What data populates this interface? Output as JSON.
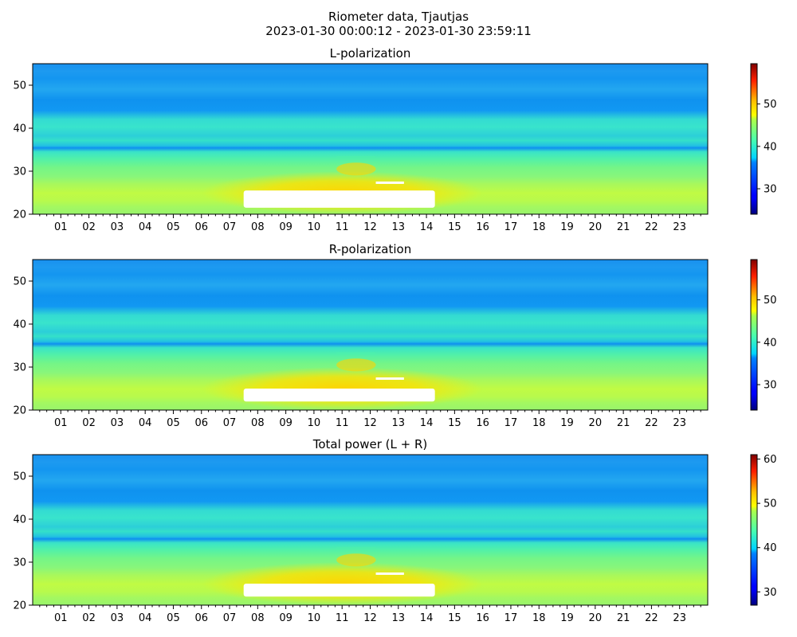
{
  "figure": {
    "title_line1": "Riometer data, Tjautjas",
    "title_line2": "2023-01-30 00:00:12 - 2023-01-30 23:59:11"
  },
  "chart_data": [
    {
      "type": "heatmap",
      "title": "L-polarization",
      "xlabel": "",
      "ylabel": "",
      "x_ticks": [
        "01",
        "02",
        "03",
        "04",
        "05",
        "06",
        "07",
        "08",
        "09",
        "10",
        "11",
        "12",
        "13",
        "14",
        "15",
        "16",
        "17",
        "18",
        "19",
        "20",
        "21",
        "22",
        "23"
      ],
      "xlim": [
        0,
        24
      ],
      "y_ticks": [
        20,
        30,
        40,
        50
      ],
      "ylim": [
        20,
        55
      ],
      "colorbar": {
        "ticks": [
          30,
          40,
          50
        ],
        "range": [
          24,
          59.5
        ],
        "colormap": "jet"
      },
      "saturated_region": {
        "x_range_hours": [
          7.5,
          14.3
        ],
        "y_range": [
          21.5,
          25.5
        ],
        "color": "#ffffff"
      }
    },
    {
      "type": "heatmap",
      "title": "R-polarization",
      "xlabel": "",
      "ylabel": "",
      "x_ticks": [
        "01",
        "02",
        "03",
        "04",
        "05",
        "06",
        "07",
        "08",
        "09",
        "10",
        "11",
        "12",
        "13",
        "14",
        "15",
        "16",
        "17",
        "18",
        "19",
        "20",
        "21",
        "22",
        "23"
      ],
      "xlim": [
        0,
        24
      ],
      "y_ticks": [
        20,
        30,
        40,
        50
      ],
      "ylim": [
        20,
        55
      ],
      "colorbar": {
        "ticks": [
          30,
          40,
          50
        ],
        "range": [
          24,
          59.5
        ],
        "colormap": "jet"
      },
      "saturated_region": {
        "x_range_hours": [
          7.5,
          14.3
        ],
        "y_range": [
          22,
          25
        ],
        "color": "#ffffff"
      }
    },
    {
      "type": "heatmap",
      "title": "Total power (L + R)",
      "xlabel": "",
      "ylabel": "",
      "x_ticks": [
        "01",
        "02",
        "03",
        "04",
        "05",
        "06",
        "07",
        "08",
        "09",
        "10",
        "11",
        "12",
        "13",
        "14",
        "15",
        "16",
        "17",
        "18",
        "19",
        "20",
        "21",
        "22",
        "23"
      ],
      "xlim": [
        0,
        24
      ],
      "y_ticks": [
        20,
        30,
        40,
        50
      ],
      "ylim": [
        20,
        55
      ],
      "colorbar": {
        "ticks": [
          30,
          40,
          50,
          60
        ],
        "range": [
          27,
          61
        ],
        "colormap": "jet"
      },
      "saturated_region": {
        "x_range_hours": [
          7.5,
          14.3
        ],
        "y_range": [
          22,
          25
        ],
        "color": "#ffffff"
      }
    }
  ]
}
